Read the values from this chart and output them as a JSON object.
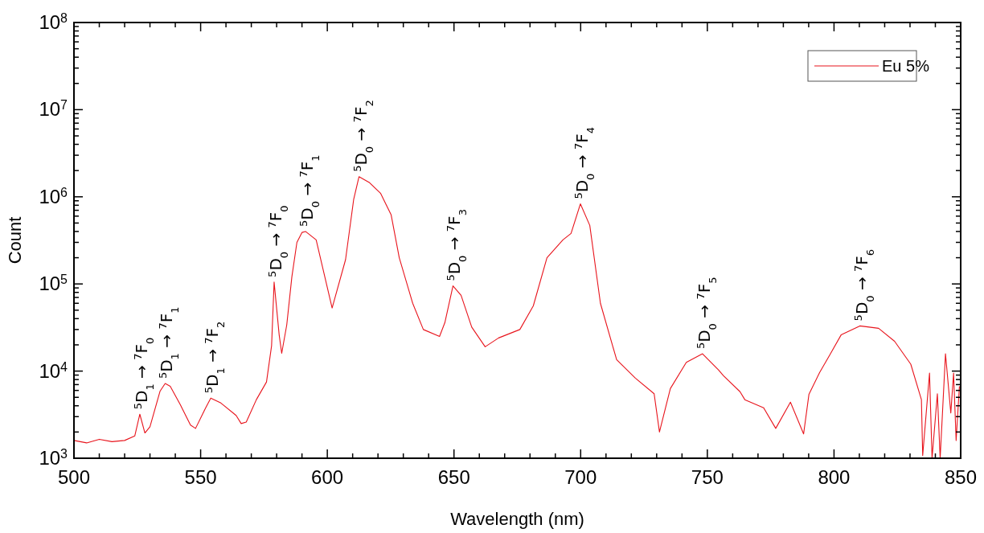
{
  "chart_data": {
    "type": "line",
    "xlabel": "Wavelength (nm)",
    "ylabel": "Count",
    "log": "y",
    "legend": "top right",
    "line_style": "solid",
    "marker": "none",
    "grid": false,
    "xlim": [
      500,
      850
    ],
    "ylim": [
      1000,
      100000000
    ],
    "xticks": [
      500,
      {
        "value": 510,
        "label": null
      },
      {
        "value": 520,
        "label": null
      },
      {
        "value": 530,
        "label": null
      },
      {
        "value": 540,
        "label": null
      },
      550,
      {
        "value": 560,
        "label": null
      },
      {
        "value": 570,
        "label": null
      },
      {
        "value": 580,
        "label": null
      },
      {
        "value": 590,
        "label": null
      },
      600,
      {
        "value": 610,
        "label": null
      },
      {
        "value": 620,
        "label": null
      },
      {
        "value": 630,
        "label": null
      },
      {
        "value": 640,
        "label": null
      },
      650,
      {
        "value": 660,
        "label": null
      },
      {
        "value": 670,
        "label": null
      },
      {
        "value": 680,
        "label": null
      },
      {
        "value": 690,
        "label": null
      },
      700,
      {
        "value": 710,
        "label": null
      },
      {
        "value": 720,
        "label": null
      },
      {
        "value": 730,
        "label": null
      },
      {
        "value": 740,
        "label": null
      },
      750,
      {
        "value": 760,
        "label": null
      },
      {
        "value": 770,
        "label": null
      },
      {
        "value": 780,
        "label": null
      },
      {
        "value": 790,
        "label": null
      },
      800,
      {
        "value": 810,
        "label": null
      },
      {
        "value": 820,
        "label": null
      },
      {
        "value": 830,
        "label": null
      },
      {
        "value": 840,
        "label": null
      },
      850
    ],
    "yticks": [
      {
        "value": 1000,
        "label": "10$^{3}$"
      },
      {
        "value": 2000,
        "label": null
      },
      {
        "value": 3000,
        "label": null
      },
      {
        "value": 4000,
        "label": null
      },
      {
        "value": 5000,
        "label": null
      },
      {
        "value": 6000,
        "label": null
      },
      {
        "value": 7000,
        "label": null
      },
      {
        "value": 8000,
        "label": null
      },
      {
        "value": 9000,
        "label": null
      },
      {
        "value": 10000,
        "label": "10$^{4}$"
      },
      {
        "value": 20000,
        "label": null
      },
      {
        "value": 30000,
        "label": null
      },
      {
        "value": 40000,
        "label": null
      },
      {
        "value": 50000,
        "label": null
      },
      {
        "value": 60000,
        "label": null
      },
      {
        "value": 70000,
        "label": null
      },
      {
        "value": 80000,
        "label": null
      },
      {
        "value": 90000,
        "label": null
      },
      {
        "value": 100000,
        "label": "10$^{5}$"
      },
      {
        "value": 200000,
        "label": null
      },
      {
        "value": 300000,
        "label": null
      },
      {
        "value": 400000,
        "label": null
      },
      {
        "value": 500000,
        "label": null
      },
      {
        "value": 600000,
        "label": null
      },
      {
        "value": 700000,
        "label": null
      },
      {
        "value": 800000,
        "label": null
      },
      {
        "value": 900000,
        "label": null
      },
      {
        "value": 1000000,
        "label": "10$^{6}$"
      },
      {
        "value": 2000000,
        "label": null
      },
      {
        "value": 3000000,
        "label": null
      },
      {
        "value": 4000000,
        "label": null
      },
      {
        "value": 5000000,
        "label": null
      },
      {
        "value": 6000000,
        "label": null
      },
      {
        "value": 7000000,
        "label": null
      },
      {
        "value": 8000000,
        "label": null
      },
      {
        "value": 9000000,
        "label": null
      },
      {
        "value": 10000000,
        "label": "10$^{7}$"
      },
      {
        "value": 20000000,
        "label": null
      },
      {
        "value": 30000000,
        "label": null
      },
      {
        "value": 40000000,
        "label": null
      },
      {
        "value": 50000000,
        "label": null
      },
      {
        "value": 60000000,
        "label": null
      },
      {
        "value": 70000000,
        "label": null
      },
      {
        "value": 80000000,
        "label": null
      },
      {
        "value": 90000000,
        "label": null
      },
      {
        "value": 100000000,
        "label": "10$^{8}$"
      }
    ],
    "series": [
      {
        "name": "Eu 5%",
        "color": "#e8141c",
        "x": [
          500,
          505,
          510,
          515,
          520,
          524,
          526,
          528,
          530,
          534,
          536,
          538,
          542,
          546,
          548,
          552,
          554,
          558,
          564,
          566,
          568,
          572,
          576,
          578,
          579,
          581,
          582,
          584,
          586,
          588,
          590,
          591.4,
          595.6,
          601.9,
          607.2,
          610.4,
          612.5,
          616.7,
          621,
          625.2,
          628.4,
          633.7,
          637.9,
          644.3,
          646.4,
          649.6,
          652.8,
          657,
          662.3,
          667.6,
          676,
          681.3,
          686.7,
          693,
          696.2,
          699.9,
          703.6,
          707.8,
          714.2,
          721.6,
          729,
          731.1,
          735.4,
          741.7,
          748.1,
          754.4,
          756.3,
          762.9,
          764.8,
          772.2,
          777,
          782.8,
          788,
          790.1,
          794.3,
          798.6,
          802.8,
          810.2,
          817.6,
          823.9,
          830.3,
          834.5,
          835,
          837.7,
          838.7,
          840.8,
          841.9,
          844,
          846.1,
          847.2,
          848.2,
          849.5
        ],
        "values": [
          1600,
          1500,
          1650,
          1550,
          1600,
          1800,
          3200,
          1950,
          2300,
          5900,
          7200,
          6700,
          4100,
          2400,
          2200,
          3800,
          4900,
          4300,
          3100,
          2500,
          2600,
          4700,
          7500,
          19500,
          105000,
          26000,
          16000,
          34000,
          120000,
          300000,
          390000,
          400000,
          320000,
          53000,
          190000,
          930000,
          1700000,
          1450000,
          1100000,
          620000,
          200000,
          60000,
          30000,
          25000,
          36000,
          95000,
          74000,
          32000,
          19000,
          24000,
          30000,
          56000,
          200000,
          320000,
          380000,
          830000,
          470000,
          60000,
          13500,
          8300,
          5500,
          2000,
          6300,
          12600,
          15800,
          10300,
          8900,
          5800,
          4700,
          3800,
          2200,
          4400,
          1900,
          5400,
          9600,
          15800,
          26000,
          33000,
          31000,
          22000,
          12000,
          4700,
          1070,
          9500,
          1000,
          5500,
          1000,
          15800,
          3300,
          9500,
          1600,
          6700
        ]
      }
    ],
    "annotations": [
      {
        "text": "$^{5}$D$_{1}$ → $^{7}$F$_{0}$",
        "x": 526,
        "y": 3200
      },
      {
        "text": "$^{5}$D$_{1}$ → $^{7}$F$_{1}$",
        "x": 536,
        "y": 7200
      },
      {
        "text": "$^{5}$D$_{1}$ → $^{7}$F$_{2}$",
        "x": 554,
        "y": 4900
      },
      {
        "text": "$^{5}$D$_{0}$ → $^{7}$F$_{0}$",
        "x": 579,
        "y": 105000
      },
      {
        "text": "$^{5}$D$_{0}$ → $^{7}$F$_{1}$",
        "x": 591.4,
        "y": 400000
      },
      {
        "text": "$^{5}$D$_{0}$ → $^{7}$F$_{2}$",
        "x": 612.5,
        "y": 1700000
      },
      {
        "text": "$^{5}$D$_{0}$ → $^{7}$F$_{3}$",
        "x": 649.6,
        "y": 95000
      },
      {
        "text": "$^{5}$D$_{0}$ → $^{7}$F$_{4}$",
        "x": 699.9,
        "y": 830000
      },
      {
        "text": "$^{5}$D$_{0}$ → $^{7}$F$_{5}$",
        "x": 748.1,
        "y": 15800
      },
      {
        "text": "$^{5}$D$_{0}$ → $^{7}$F$_{6}$",
        "x": 810.2,
        "y": 33000
      }
    ]
  }
}
